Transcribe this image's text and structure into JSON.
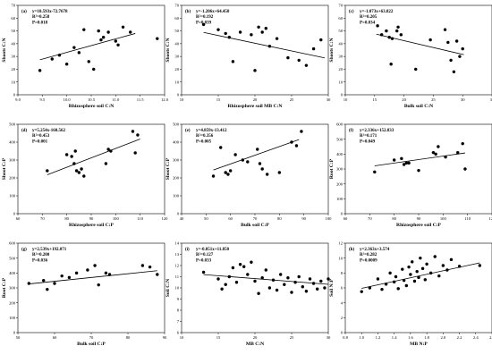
{
  "chart_data": [
    {
      "type": "scatter",
      "panel_label": "(a)",
      "xlabel": "Rhizosphere soil C:N",
      "ylabel": "Shoots C:N",
      "xlim": [
        9,
        12
      ],
      "ylim": [
        0,
        70
      ],
      "xticks": [
        "9.0",
        "9.5",
        "10.0",
        "10.5",
        "11.0",
        "11.5",
        "12.0"
      ],
      "yticks": [
        "0",
        "10",
        "20",
        "30",
        "40",
        "50",
        "60",
        "70"
      ],
      "annotation": [
        "y=10.593x-72.7678",
        "R²=0.258",
        "P=0.018"
      ],
      "points": [
        [
          9.45,
          19
        ],
        [
          9.7,
          28
        ],
        [
          9.85,
          31
        ],
        [
          10.0,
          24
        ],
        [
          10.15,
          37
        ],
        [
          10.25,
          33
        ],
        [
          10.35,
          51
        ],
        [
          10.45,
          26
        ],
        [
          10.55,
          20
        ],
        [
          10.65,
          50
        ],
        [
          10.7,
          43
        ],
        [
          10.75,
          45
        ],
        [
          10.85,
          49
        ],
        [
          11.0,
          42
        ],
        [
          11.05,
          39
        ],
        [
          11.15,
          53
        ],
        [
          11.3,
          49
        ],
        [
          11.85,
          44
        ]
      ],
      "trend": [
        [
          9.45,
          27.4
        ],
        [
          11.4,
          48.0
        ]
      ]
    },
    {
      "type": "scatter",
      "panel_label": "(b)",
      "xlabel": "Rhizosphere soil MB C:N",
      "ylabel": "Shoots C:N",
      "xlim": [
        10,
        30
      ],
      "ylim": [
        0,
        70
      ],
      "xticks": [
        "10",
        "15",
        "20",
        "25",
        "30"
      ],
      "yticks": [
        "0",
        "10",
        "20",
        "30",
        "40",
        "50",
        "60",
        "70"
      ],
      "annotation": [
        "y=-1.206x+64.450",
        "R²=0.192",
        "P=0.039"
      ],
      "points": [
        [
          13,
          55
        ],
        [
          15,
          51
        ],
        [
          16,
          48
        ],
        [
          16.5,
          45
        ],
        [
          17,
          26
        ],
        [
          18,
          49
        ],
        [
          19.5,
          47
        ],
        [
          20,
          19
        ],
        [
          20.5,
          53
        ],
        [
          21,
          49
        ],
        [
          21.5,
          52
        ],
        [
          22,
          38
        ],
        [
          23,
          44
        ],
        [
          24.5,
          29
        ],
        [
          26,
          27
        ],
        [
          27,
          23
        ],
        [
          28,
          36
        ],
        [
          29,
          43
        ]
      ],
      "trend": [
        [
          13,
          48.8
        ],
        [
          29.5,
          28.9
        ]
      ]
    },
    {
      "type": "scatter",
      "panel_label": "(c)",
      "xlabel": "Bulk soil C:N",
      "ylabel": "Shoots C:N",
      "xlim": [
        10,
        35
      ],
      "ylim": [
        0,
        70
      ],
      "xticks": [
        "10",
        "15",
        "20",
        "25",
        "30",
        "35"
      ],
      "yticks": [
        "0",
        "10",
        "20",
        "30",
        "40",
        "50",
        "60",
        "70"
      ],
      "annotation": [
        "y=-1.073x+63.822",
        "R²=0.205",
        "P=0.034"
      ],
      "points": [
        [
          15.5,
          54
        ],
        [
          16.2,
          47
        ],
        [
          17,
          50
        ],
        [
          17.5,
          45
        ],
        [
          17.8,
          24
        ],
        [
          18,
          44
        ],
        [
          18.8,
          50
        ],
        [
          19,
          53
        ],
        [
          19.5,
          47
        ],
        [
          22,
          20
        ],
        [
          24.5,
          43
        ],
        [
          27,
          51
        ],
        [
          27.5,
          41
        ],
        [
          28,
          27
        ],
        [
          28.5,
          18
        ],
        [
          29,
          42
        ],
        [
          29.5,
          30
        ],
        [
          30,
          36
        ]
      ],
      "trend": [
        [
          15.3,
          47.4
        ],
        [
          30.2,
          31.4
        ]
      ]
    },
    {
      "type": "scatter",
      "panel_label": "(d)",
      "xlabel": "Rhizosphere soil C:P",
      "ylabel": "Shoot C:P",
      "xlim": [
        60,
        120
      ],
      "ylim": [
        0,
        500
      ],
      "xticks": [
        "60",
        "70",
        "80",
        "90",
        "100",
        "110",
        "120"
      ],
      "yticks": [
        "0",
        "100",
        "200",
        "300",
        "400",
        "500"
      ],
      "annotation": [
        "y=5.254x-160.562",
        "R²=0.453",
        "P=0.001"
      ],
      "points": [
        [
          72,
          240
        ],
        [
          80,
          330
        ],
        [
          82,
          320
        ],
        [
          83,
          280
        ],
        [
          83.5,
          350
        ],
        [
          84,
          240
        ],
        [
          85,
          230
        ],
        [
          86,
          250
        ],
        [
          87,
          210
        ],
        [
          96,
          280
        ],
        [
          97,
          360
        ],
        [
          98,
          350
        ],
        [
          107,
          460
        ],
        [
          108,
          340
        ],
        [
          109,
          440
        ]
      ],
      "trend": [
        [
          72,
          217.7
        ],
        [
          110,
          417.4
        ]
      ]
    },
    {
      "type": "scatter",
      "panel_label": "(e)",
      "xlabel": "Bulk soil C:P",
      "ylabel": "Shoot C:P",
      "xlim": [
        40,
        100
      ],
      "ylim": [
        0,
        500
      ],
      "xticks": [
        "40",
        "50",
        "60",
        "70",
        "80",
        "90",
        "100"
      ],
      "yticks": [
        "0",
        "100",
        "200",
        "300",
        "400",
        "500"
      ],
      "annotation": [
        "y=4.859x-13.412",
        "R²=0.356",
        "P=0.005"
      ],
      "points": [
        [
          53,
          210
        ],
        [
          56,
          370
        ],
        [
          58,
          230
        ],
        [
          59,
          220
        ],
        [
          60,
          240
        ],
        [
          62,
          330
        ],
        [
          65,
          300
        ],
        [
          67,
          290
        ],
        [
          71,
          360
        ],
        [
          72,
          280
        ],
        [
          73,
          250
        ],
        [
          75,
          220
        ],
        [
          80,
          230
        ],
        [
          85,
          400
        ],
        [
          87,
          380
        ],
        [
          89,
          460
        ]
      ],
      "trend": [
        [
          53,
          244.1
        ],
        [
          88,
          414.2
        ]
      ]
    },
    {
      "type": "scatter",
      "panel_label": "(f)",
      "xlabel": "Rhizosphere soil C:P",
      "ylabel": "Root C:P",
      "xlim": [
        60,
        120
      ],
      "ylim": [
        0,
        600
      ],
      "xticks": [
        "60",
        "70",
        "80",
        "90",
        "100",
        "110",
        "120"
      ],
      "yticks": [
        "0",
        "100",
        "200",
        "300",
        "400",
        "500",
        "600"
      ],
      "annotation": [
        "y=2.336x+152.833",
        "R²=0.171",
        "P=0.049"
      ],
      "points": [
        [
          72,
          280
        ],
        [
          80,
          360
        ],
        [
          83,
          370
        ],
        [
          84,
          330
        ],
        [
          85,
          340
        ],
        [
          86,
          340
        ],
        [
          90,
          290
        ],
        [
          96,
          410
        ],
        [
          97,
          400
        ],
        [
          98,
          450
        ],
        [
          101,
          380
        ],
        [
          106,
          410
        ],
        [
          108,
          470
        ],
        [
          109,
          300
        ]
      ],
      "trend": [
        [
          72,
          321.0
        ],
        [
          109,
          407.5
        ]
      ]
    },
    {
      "type": "scatter",
      "panel_label": "(g)",
      "xlabel": "Bulk soil C:P",
      "ylabel": "Root C:P",
      "xlim": [
        50,
        90
      ],
      "ylim": [
        0,
        600
      ],
      "xticks": [
        "50",
        "60",
        "70",
        "80",
        "90"
      ],
      "yticks": [
        "0",
        "100",
        "200",
        "300",
        "400",
        "500",
        "600"
      ],
      "annotation": [
        "y=2.539x+192.071",
        "R²=0.200",
        "P=0.036"
      ],
      "points": [
        [
          53,
          330
        ],
        [
          57,
          350
        ],
        [
          58,
          290
        ],
        [
          60,
          330
        ],
        [
          62,
          380
        ],
        [
          64,
          370
        ],
        [
          66,
          400
        ],
        [
          69,
          420
        ],
        [
          71,
          450
        ],
        [
          72,
          320
        ],
        [
          74,
          400
        ],
        [
          75,
          390
        ],
        [
          84,
          450
        ],
        [
          86,
          440
        ],
        [
          88,
          390
        ]
      ],
      "trend": [
        [
          53,
          326.6
        ],
        [
          88,
          415.5
        ]
      ]
    },
    {
      "type": "scatter",
      "panel_label": "(i)",
      "xlabel": "MB C:N",
      "ylabel": "Soil C:N",
      "xlim": [
        10,
        30
      ],
      "ylim": [
        6,
        14
      ],
      "xticks": [
        "10",
        "15",
        "20",
        "25",
        "30"
      ],
      "yticks": [
        "6",
        "7",
        "8",
        "9",
        "10",
        "11",
        "12",
        "13",
        "14"
      ],
      "annotation": [
        "y=-0.051x+11.850",
        "R²=0.127",
        "P=0.033"
      ],
      "points": [
        [
          13,
          11.4
        ],
        [
          15,
          10.8
        ],
        [
          15.5,
          9.9
        ],
        [
          16,
          10.3
        ],
        [
          16.5,
          11.0
        ],
        [
          17,
          11.8
        ],
        [
          17.5,
          10.5
        ],
        [
          18,
          12.1
        ],
        [
          18.5,
          11.9
        ],
        [
          19,
          11.2
        ],
        [
          19.5,
          12.3
        ],
        [
          20,
          10.6
        ],
        [
          20.5,
          9.5
        ],
        [
          21,
          10.9
        ],
        [
          21.5,
          11.6
        ],
        [
          22,
          10.0
        ],
        [
          22.5,
          10.7
        ],
        [
          23,
          9.8
        ],
        [
          23.5,
          11.2
        ],
        [
          24,
          10.3
        ],
        [
          24.5,
          10.9
        ],
        [
          25,
          9.6
        ],
        [
          25.5,
          10.5
        ],
        [
          26,
          11.0
        ],
        [
          26.5,
          10.1
        ],
        [
          27,
          9.7
        ],
        [
          27.5,
          10.8
        ],
        [
          28,
          10.4
        ],
        [
          28.5,
          9.9
        ],
        [
          29,
          10.6
        ],
        [
          29.5,
          10.0
        ],
        [
          30,
          10.8
        ]
      ],
      "trend": [
        [
          13,
          11.19
        ],
        [
          30,
          10.32
        ]
      ]
    },
    {
      "type": "scatter",
      "panel_label": "(h)",
      "xlabel": "MB N:P",
      "ylabel": "Soil N:P",
      "xlim": [
        0.8,
        2.6
      ],
      "ylim": [
        0,
        12
      ],
      "xticks": [
        "0.8",
        "1.0",
        "1.2",
        "1.4",
        "1.6",
        "1.8",
        "2.0",
        "2.2",
        "2.4",
        "2.6"
      ],
      "yticks": [
        "0",
        "2",
        "4",
        "6",
        "8",
        "10",
        "12"
      ],
      "annotation": [
        "y=2.363x+3.574",
        "R²=0.282",
        "P=0.0009"
      ],
      "points": [
        [
          1.0,
          5.5
        ],
        [
          1.1,
          6.0
        ],
        [
          1.2,
          7.2
        ],
        [
          1.25,
          5.8
        ],
        [
          1.3,
          6.5
        ],
        [
          1.35,
          8.0
        ],
        [
          1.4,
          6.8
        ],
        [
          1.42,
          7.5
        ],
        [
          1.45,
          5.9
        ],
        [
          1.5,
          8.5
        ],
        [
          1.52,
          7.0
        ],
        [
          1.55,
          6.3
        ],
        [
          1.58,
          8.8
        ],
        [
          1.6,
          7.8
        ],
        [
          1.62,
          9.5
        ],
        [
          1.65,
          6.9
        ],
        [
          1.68,
          8.2
        ],
        [
          1.7,
          7.4
        ],
        [
          1.72,
          10.0
        ],
        [
          1.75,
          8.6
        ],
        [
          1.78,
          7.1
        ],
        [
          1.8,
          9.2
        ],
        [
          1.85,
          8.0
        ],
        [
          1.9,
          10.2
        ],
        [
          1.95,
          7.6
        ],
        [
          2.0,
          9.0
        ],
        [
          2.05,
          8.4
        ],
        [
          2.1,
          9.8
        ],
        [
          2.2,
          8.9
        ],
        [
          2.45,
          9.0
        ]
      ],
      "trend": [
        [
          1.0,
          5.94
        ],
        [
          2.45,
          9.36
        ]
      ]
    }
  ]
}
